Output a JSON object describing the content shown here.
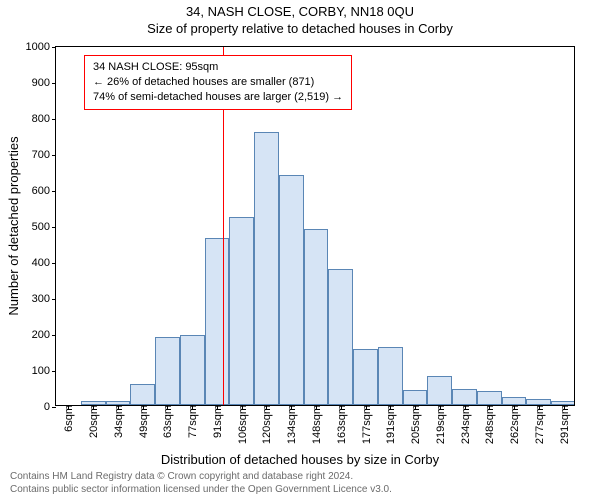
{
  "title_main": "34, NASH CLOSE, CORBY, NN18 0QU",
  "title_sub": "Size of property relative to detached houses in Corby",
  "ylabel": "Number of detached properties",
  "xlabel": "Distribution of detached houses by size in Corby",
  "title_fontsize": 13,
  "label_fontsize": 13,
  "tick_fontsize": 11,
  "legend_fontsize": 11,
  "chart": {
    "type": "histogram",
    "ylim": [
      0,
      1000
    ],
    "ytick_step": 100,
    "x_categories": [
      "6sqm",
      "20sqm",
      "34sqm",
      "49sqm",
      "63sqm",
      "77sqm",
      "91sqm",
      "106sqm",
      "120sqm",
      "134sqm",
      "148sqm",
      "163sqm",
      "177sqm",
      "191sqm",
      "205sqm",
      "219sqm",
      "234sqm",
      "248sqm",
      "262sqm",
      "277sqm",
      "291sqm"
    ],
    "values": [
      0,
      12,
      10,
      58,
      190,
      195,
      465,
      522,
      758,
      638,
      488,
      378,
      155,
      160,
      42,
      80,
      45,
      38,
      22,
      18,
      10
    ],
    "bar_fill": "#d6e4f5",
    "bar_stroke": "#5a86b5",
    "background_color": "#ffffff",
    "axis_color": "#000000",
    "bar_width_ratio": 1.0
  },
  "marker": {
    "x_value": 95,
    "x_min": 6,
    "x_max": 291,
    "color": "#ff0000"
  },
  "legend": {
    "border_color": "#ff0000",
    "lines": [
      "34 NASH CLOSE: 95sqm",
      "← 26% of detached houses are smaller (871)",
      "74% of semi-detached houses are larger (2,519) →"
    ]
  },
  "footer": {
    "line1": "Contains HM Land Registry data © Crown copyright and database right 2024.",
    "line2": "Contains public sector information licensed under the Open Government Licence v3.0."
  }
}
